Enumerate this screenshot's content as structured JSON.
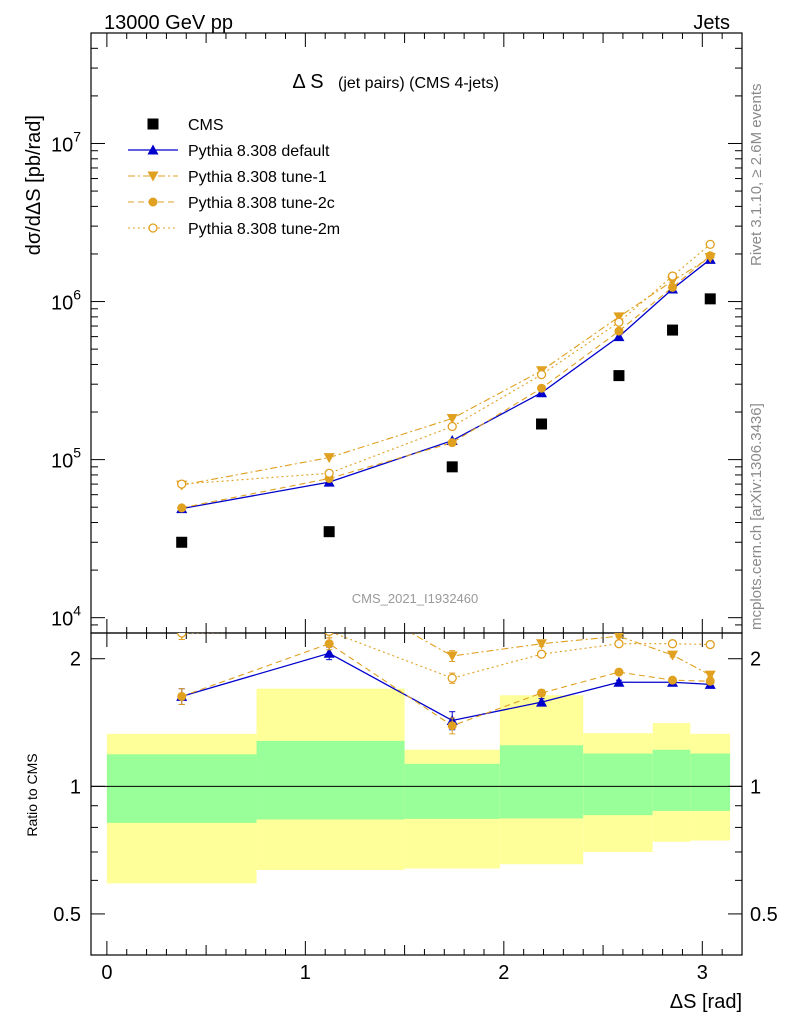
{
  "header": {
    "left_label": "13000 GeV pp",
    "right_label": "Jets"
  },
  "side": {
    "rivet": "Rivet 3.1.10, ≥ 2.6M events",
    "mcplots": "mcplots.cern.ch [arXiv:1306.3436]"
  },
  "colors": {
    "data": "#000000",
    "default": "#0000cc",
    "tune": "#e0a020",
    "band_inner": "#99ff99",
    "band_outer": "#ffff99"
  },
  "chart_data": [
    {
      "type": "scatter",
      "panel": "main",
      "title": "Δ S",
      "subtitle": "(jet pairs) (CMS 4-jets)",
      "analysis_label": "CMS_2021_I1932460",
      "ylabel": "dσ/dΔS [pb/rad]",
      "yscale": "log",
      "xlim": [
        -0.08,
        3.2
      ],
      "ylim": [
        8000,
        50000000
      ],
      "y_ticks": [
        {
          "value": 10000,
          "base": "10",
          "exp": "4"
        },
        {
          "value": 100000,
          "base": "10",
          "exp": "5"
        },
        {
          "value": 1000000,
          "base": "10",
          "exp": "6"
        },
        {
          "value": 10000000,
          "base": "10",
          "exp": "7"
        }
      ],
      "legend_position": "top-left",
      "x_centers": [
        0.377,
        1.12,
        1.74,
        2.19,
        2.58,
        2.85,
        3.04
      ],
      "x_edges": [
        0,
        0.754,
        1.5,
        1.98,
        2.4,
        2.75,
        2.94,
        3.14
      ],
      "series": [
        {
          "name": "CMS",
          "style": "data",
          "marker": "square",
          "y": [
            30000,
            35000,
            90000,
            168000,
            340000,
            660000,
            1040000
          ]
        },
        {
          "name": "Pythia 8.308 default",
          "style": "solid",
          "marker": "triangle-up",
          "color_key": "default",
          "y": [
            49000,
            72000,
            132000,
            265000,
            600000,
            1200000,
            1850000
          ]
        },
        {
          "name": "Pythia 8.308 tune-1",
          "style": "dashdot",
          "marker": "triangle-down",
          "color_key": "tune",
          "y": [
            69000,
            103000,
            182000,
            365000,
            800000,
            1350000,
            1900000
          ]
        },
        {
          "name": "Pythia 8.308 tune-2c",
          "style": "dashed",
          "marker": "circle",
          "color_key": "tune",
          "y": [
            49500,
            76000,
            128000,
            283000,
            650000,
            1230000,
            1950000
          ]
        },
        {
          "name": "Pythia 8.308 tune-2m",
          "style": "dotted",
          "marker": "circle-open",
          "color_key": "tune",
          "y": [
            70000,
            82000,
            162000,
            345000,
            740000,
            1450000,
            2300000
          ]
        }
      ]
    },
    {
      "type": "line",
      "panel": "ratio",
      "ylabel": "Ratio to CMS",
      "xlabel": "ΔS [rad]",
      "yscale": "log",
      "ylim": [
        0.4,
        2.3
      ],
      "y_ticks": [
        0.5,
        1,
        2
      ],
      "x_ticks": [
        0,
        1,
        2,
        3
      ],
      "bands": [
        {
          "x": [
            0,
            0.754
          ],
          "inner": [
            0.82,
            1.19
          ],
          "outer": [
            0.59,
            1.33
          ]
        },
        {
          "x": [
            0.754,
            1.5
          ],
          "inner": [
            0.835,
            1.28
          ],
          "outer": [
            0.635,
            1.7
          ]
        },
        {
          "x": [
            1.5,
            1.98
          ],
          "inner": [
            0.838,
            1.13
          ],
          "outer": [
            0.64,
            1.22
          ]
        },
        {
          "x": [
            1.98,
            2.4
          ],
          "inner": [
            0.84,
            1.25
          ],
          "outer": [
            0.655,
            1.64
          ]
        },
        {
          "x": [
            2.4,
            2.75
          ],
          "inner": [
            0.855,
            1.195
          ],
          "outer": [
            0.7,
            1.335
          ]
        },
        {
          "x": [
            2.75,
            2.94
          ],
          "inner": [
            0.875,
            1.22
          ],
          "outer": [
            0.74,
            1.41
          ]
        },
        {
          "x": [
            2.94,
            3.14
          ],
          "inner": [
            0.875,
            1.195
          ],
          "outer": [
            0.745,
            1.33
          ]
        }
      ],
      "series": [
        {
          "name": "Pythia 8.308 default",
          "style": "solid",
          "marker": "triangle-up",
          "color_key": "default",
          "y": [
            1.63,
            2.06,
            1.43,
            1.58,
            1.76,
            1.76,
            1.74
          ],
          "err": [
            0.07,
            0.07,
            0.07,
            0.03,
            0.02,
            0.02,
            0.02
          ]
        },
        {
          "name": "Pythia 8.308 tune-1",
          "style": "dashdot",
          "marker": "triangle-down",
          "color_key": "tune",
          "y": [
            2.3,
            2.95,
            2.03,
            2.17,
            2.26,
            2.04,
            1.83
          ],
          "err": [
            0.08,
            0.08,
            0.06,
            0.03,
            0.02,
            0.02,
            0.02
          ]
        },
        {
          "name": "Pythia 8.308 tune-2c",
          "style": "dashed",
          "marker": "circle",
          "color_key": "tune",
          "y": [
            1.63,
            2.17,
            1.39,
            1.66,
            1.86,
            1.78,
            1.77
          ],
          "err": [
            0.07,
            0.07,
            0.06,
            0.03,
            0.02,
            0.02,
            0.02
          ]
        },
        {
          "name": "Pythia 8.308 tune-2m",
          "style": "dotted",
          "marker": "circle-open",
          "color_key": "tune",
          "y": [
            2.3,
            2.32,
            1.8,
            2.05,
            2.17,
            2.17,
            2.16
          ],
          "err": [
            0.08,
            0.08,
            0.05,
            0.03,
            0.02,
            0.02,
            0.02
          ]
        }
      ]
    }
  ]
}
